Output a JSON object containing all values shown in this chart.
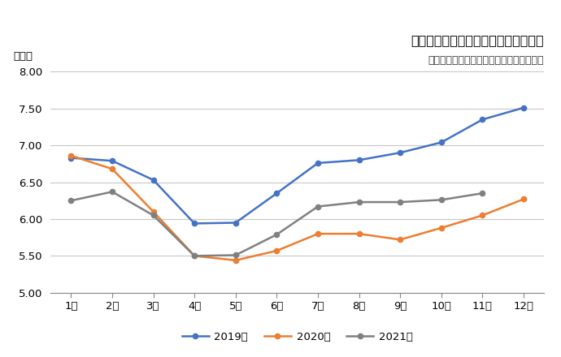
{
  "title": "建設技術者の有効求人倍率の月別推移",
  "subtitle": "厚生労働省「一般職業紹介状況」より作成",
  "ylabel": "（倍）",
  "months": [
    "1月",
    "2月",
    "3月",
    "4月",
    "5月",
    "6月",
    "7月",
    "8月",
    "9月",
    "10月",
    "11月",
    "12月"
  ],
  "series": [
    {
      "label": "2019年",
      "color": "#4472C4",
      "values": [
        6.83,
        6.79,
        6.53,
        5.94,
        5.95,
        6.35,
        6.76,
        6.8,
        6.9,
        7.04,
        7.35,
        7.51
      ]
    },
    {
      "label": "2020年",
      "color": "#ED7D31",
      "values": [
        6.86,
        6.68,
        6.1,
        5.5,
        5.44,
        5.57,
        5.8,
        5.8,
        5.72,
        5.88,
        6.05,
        6.27
      ]
    },
    {
      "label": "2021年",
      "color": "#808080",
      "values": [
        6.25,
        6.37,
        6.05,
        5.5,
        5.51,
        5.79,
        6.17,
        6.23,
        6.23,
        6.26,
        6.35,
        null
      ]
    }
  ],
  "ylim": [
    5.0,
    8.1
  ],
  "yticks": [
    5.0,
    5.5,
    6.0,
    6.5,
    7.0,
    7.5,
    8.0
  ],
  "background_color": "#FFFFFF",
  "grid_color": "#C8C8C8",
  "title_fontsize": 11.5,
  "subtitle_fontsize": 9,
  "label_fontsize": 9.5,
  "tick_fontsize": 9.5,
  "legend_fontsize": 9.5
}
